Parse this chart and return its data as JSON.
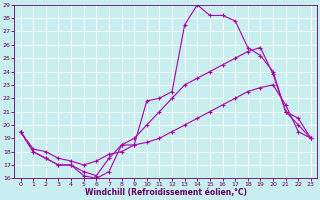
{
  "bg_color": "#c8eef0",
  "grid_color": "#ffffff",
  "line_color": "#aa00aa",
  "axis_color": "#660066",
  "xlim": [
    -0.5,
    23.5
  ],
  "ylim": [
    16,
    29
  ],
  "xticks": [
    0,
    1,
    2,
    3,
    4,
    5,
    6,
    7,
    8,
    9,
    10,
    11,
    12,
    13,
    14,
    15,
    16,
    17,
    18,
    19,
    20,
    21,
    22,
    23
  ],
  "yticks": [
    16,
    17,
    18,
    19,
    20,
    21,
    22,
    23,
    24,
    25,
    26,
    27,
    28,
    29
  ],
  "xlabel": "Windchill (Refroidissement éolien,°C)",
  "line1_x": [
    0,
    1,
    2,
    3,
    4,
    5,
    6,
    7,
    8,
    9,
    10,
    11,
    12,
    13,
    14,
    15,
    16,
    17,
    18,
    19,
    20,
    21,
    22,
    23
  ],
  "line1_y": [
    19.5,
    18.0,
    17.5,
    17.0,
    17.0,
    16.2,
    16.0,
    16.5,
    18.5,
    18.5,
    21.8,
    22.0,
    22.5,
    27.5,
    29.0,
    28.2,
    28.2,
    27.8,
    25.8,
    25.2,
    24.0,
    21.0,
    20.5,
    19.0
  ],
  "line2_x": [
    0,
    1,
    2,
    3,
    4,
    5,
    6,
    7,
    8,
    9,
    10,
    11,
    12,
    13,
    14,
    15,
    16,
    17,
    18,
    19,
    20,
    21,
    22,
    23
  ],
  "line2_y": [
    19.5,
    18.0,
    17.5,
    17.0,
    17.0,
    16.5,
    16.2,
    17.5,
    18.5,
    19.0,
    20.0,
    21.0,
    22.0,
    23.0,
    23.5,
    24.0,
    24.5,
    25.0,
    25.5,
    25.8,
    23.8,
    21.0,
    20.0,
    19.0
  ],
  "line3_x": [
    0,
    1,
    2,
    3,
    4,
    5,
    6,
    7,
    8,
    9,
    10,
    11,
    12,
    13,
    14,
    15,
    16,
    17,
    18,
    19,
    20,
    21,
    22,
    23
  ],
  "line3_y": [
    19.5,
    18.2,
    18.0,
    17.5,
    17.3,
    17.0,
    17.3,
    17.8,
    18.0,
    18.5,
    18.7,
    19.0,
    19.5,
    20.0,
    20.5,
    21.0,
    21.5,
    22.0,
    22.5,
    22.8,
    23.0,
    21.5,
    19.5,
    19.0
  ]
}
